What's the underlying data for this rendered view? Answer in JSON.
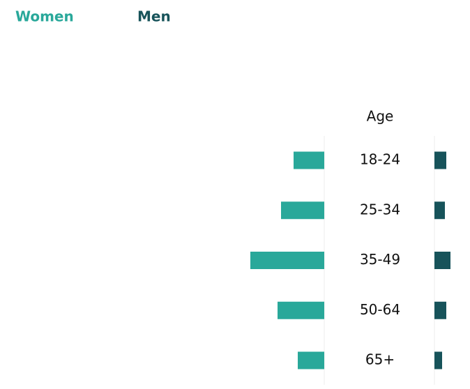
{
  "chart_data": {
    "type": "butterfly",
    "axis_title": "Age",
    "categories": [
      "18-24",
      "25-34",
      "35-49",
      "50-64",
      "65+"
    ],
    "series": [
      {
        "name": "Women",
        "color": "#29a89a",
        "values": [
          44,
          62,
          106,
          67,
          38
        ]
      },
      {
        "name": "Men",
        "color": "#17535a",
        "values": [
          17,
          15,
          23,
          17,
          11
        ]
      }
    ]
  }
}
